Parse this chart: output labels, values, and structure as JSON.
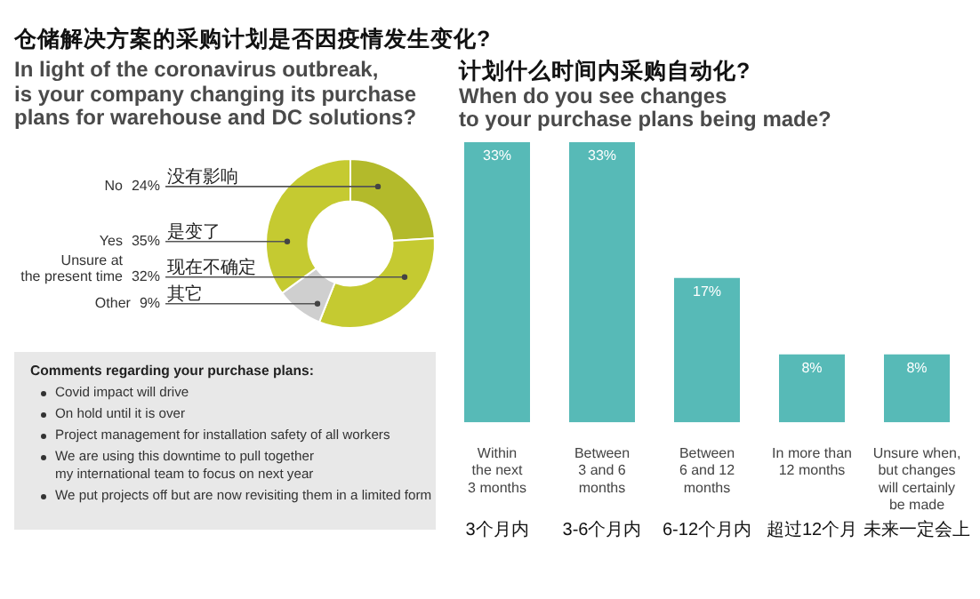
{
  "chart_data": [
    {
      "type": "donut",
      "title": "仓储解决方案的采购计划是否因疫情发生变化?",
      "subtitle": "In light of the coronavirus outbreak,\nis your company changing its purchase\nplans for warehouse and DC solutions?",
      "categories": [
        "No",
        "Unsure at\nthe present time",
        "Other",
        "Yes"
      ],
      "values": [
        24,
        32,
        9,
        35
      ],
      "value_labels": [
        "24%",
        "32%",
        "9%",
        "35%"
      ],
      "colors": [
        "#b3ba2b",
        "#c5ca31",
        "#cfcfcf",
        "#c5ca31"
      ],
      "annotations": [
        "没有影响",
        "现在不确定",
        "其它",
        "是变了"
      ]
    },
    {
      "type": "other",
      "title": "Comments regarding your purchase plans:",
      "annotations": [
        "Covid impact will drive",
        "On hold until it is over",
        "Project management for installation safety of all workers",
        "We are using this downtime to pull together\nmy international team to focus on next year",
        "We put projects off but are now revisiting them in a limited form"
      ]
    },
    {
      "type": "bar",
      "title": "计划什么时间内采购自动化?",
      "subtitle": "When do you see changes\nto your purchase plans being made?",
      "categories": [
        "Within\nthe next\n3 months",
        "Between\n3 and 6\nmonths",
        "Between\n6 and 12\nmonths",
        "In more than\n12 months",
        "Unsure when,\nbut changes\nwill certainly\nbe made"
      ],
      "values": [
        33,
        33,
        17,
        8,
        8
      ],
      "value_labels": [
        "33%",
        "33%",
        "17%",
        "8%",
        "8%"
      ],
      "color": "#57bab7",
      "annotations": [
        "3个月内",
        "3-6个月内",
        "6-12个月内",
        "超过12个月",
        "未来一定会上"
      ]
    }
  ]
}
